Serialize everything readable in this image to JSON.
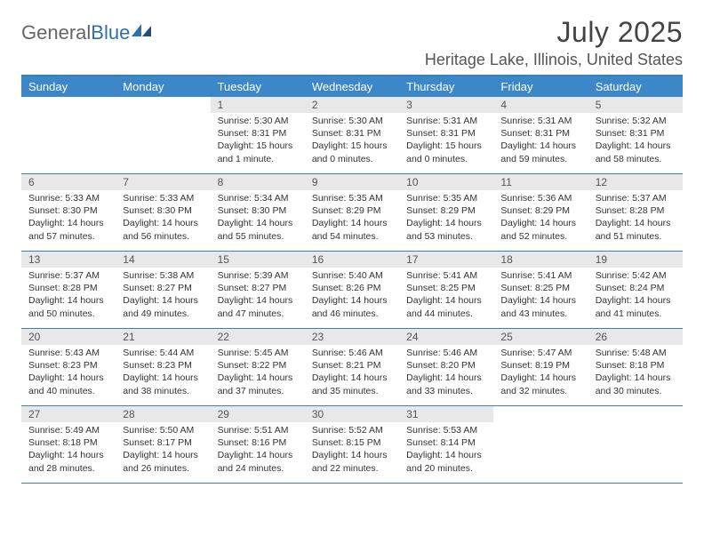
{
  "logo": {
    "text_general": "General",
    "text_blue": "Blue"
  },
  "title": {
    "month": "July 2025",
    "location": "Heritage Lake, Illinois, United States"
  },
  "colors": {
    "header_bar": "#3b87c8",
    "border": "#3b7fb8",
    "daynum_bg": "#e8e8e8",
    "text": "#333333",
    "logo_blue": "#2f6fae"
  },
  "day_names": [
    "Sunday",
    "Monday",
    "Tuesday",
    "Wednesday",
    "Thursday",
    "Friday",
    "Saturday"
  ],
  "weeks": [
    [
      {
        "day": "",
        "lines": []
      },
      {
        "day": "",
        "lines": []
      },
      {
        "day": "1",
        "lines": [
          "Sunrise: 5:30 AM",
          "Sunset: 8:31 PM",
          "Daylight: 15 hours and 1 minute."
        ]
      },
      {
        "day": "2",
        "lines": [
          "Sunrise: 5:30 AM",
          "Sunset: 8:31 PM",
          "Daylight: 15 hours and 0 minutes."
        ]
      },
      {
        "day": "3",
        "lines": [
          "Sunrise: 5:31 AM",
          "Sunset: 8:31 PM",
          "Daylight: 15 hours and 0 minutes."
        ]
      },
      {
        "day": "4",
        "lines": [
          "Sunrise: 5:31 AM",
          "Sunset: 8:31 PM",
          "Daylight: 14 hours and 59 minutes."
        ]
      },
      {
        "day": "5",
        "lines": [
          "Sunrise: 5:32 AM",
          "Sunset: 8:31 PM",
          "Daylight: 14 hours and 58 minutes."
        ]
      }
    ],
    [
      {
        "day": "6",
        "lines": [
          "Sunrise: 5:33 AM",
          "Sunset: 8:30 PM",
          "Daylight: 14 hours and 57 minutes."
        ]
      },
      {
        "day": "7",
        "lines": [
          "Sunrise: 5:33 AM",
          "Sunset: 8:30 PM",
          "Daylight: 14 hours and 56 minutes."
        ]
      },
      {
        "day": "8",
        "lines": [
          "Sunrise: 5:34 AM",
          "Sunset: 8:30 PM",
          "Daylight: 14 hours and 55 minutes."
        ]
      },
      {
        "day": "9",
        "lines": [
          "Sunrise: 5:35 AM",
          "Sunset: 8:29 PM",
          "Daylight: 14 hours and 54 minutes."
        ]
      },
      {
        "day": "10",
        "lines": [
          "Sunrise: 5:35 AM",
          "Sunset: 8:29 PM",
          "Daylight: 14 hours and 53 minutes."
        ]
      },
      {
        "day": "11",
        "lines": [
          "Sunrise: 5:36 AM",
          "Sunset: 8:29 PM",
          "Daylight: 14 hours and 52 minutes."
        ]
      },
      {
        "day": "12",
        "lines": [
          "Sunrise: 5:37 AM",
          "Sunset: 8:28 PM",
          "Daylight: 14 hours and 51 minutes."
        ]
      }
    ],
    [
      {
        "day": "13",
        "lines": [
          "Sunrise: 5:37 AM",
          "Sunset: 8:28 PM",
          "Daylight: 14 hours and 50 minutes."
        ]
      },
      {
        "day": "14",
        "lines": [
          "Sunrise: 5:38 AM",
          "Sunset: 8:27 PM",
          "Daylight: 14 hours and 49 minutes."
        ]
      },
      {
        "day": "15",
        "lines": [
          "Sunrise: 5:39 AM",
          "Sunset: 8:27 PM",
          "Daylight: 14 hours and 47 minutes."
        ]
      },
      {
        "day": "16",
        "lines": [
          "Sunrise: 5:40 AM",
          "Sunset: 8:26 PM",
          "Daylight: 14 hours and 46 minutes."
        ]
      },
      {
        "day": "17",
        "lines": [
          "Sunrise: 5:41 AM",
          "Sunset: 8:25 PM",
          "Daylight: 14 hours and 44 minutes."
        ]
      },
      {
        "day": "18",
        "lines": [
          "Sunrise: 5:41 AM",
          "Sunset: 8:25 PM",
          "Daylight: 14 hours and 43 minutes."
        ]
      },
      {
        "day": "19",
        "lines": [
          "Sunrise: 5:42 AM",
          "Sunset: 8:24 PM",
          "Daylight: 14 hours and 41 minutes."
        ]
      }
    ],
    [
      {
        "day": "20",
        "lines": [
          "Sunrise: 5:43 AM",
          "Sunset: 8:23 PM",
          "Daylight: 14 hours and 40 minutes."
        ]
      },
      {
        "day": "21",
        "lines": [
          "Sunrise: 5:44 AM",
          "Sunset: 8:23 PM",
          "Daylight: 14 hours and 38 minutes."
        ]
      },
      {
        "day": "22",
        "lines": [
          "Sunrise: 5:45 AM",
          "Sunset: 8:22 PM",
          "Daylight: 14 hours and 37 minutes."
        ]
      },
      {
        "day": "23",
        "lines": [
          "Sunrise: 5:46 AM",
          "Sunset: 8:21 PM",
          "Daylight: 14 hours and 35 minutes."
        ]
      },
      {
        "day": "24",
        "lines": [
          "Sunrise: 5:46 AM",
          "Sunset: 8:20 PM",
          "Daylight: 14 hours and 33 minutes."
        ]
      },
      {
        "day": "25",
        "lines": [
          "Sunrise: 5:47 AM",
          "Sunset: 8:19 PM",
          "Daylight: 14 hours and 32 minutes."
        ]
      },
      {
        "day": "26",
        "lines": [
          "Sunrise: 5:48 AM",
          "Sunset: 8:18 PM",
          "Daylight: 14 hours and 30 minutes."
        ]
      }
    ],
    [
      {
        "day": "27",
        "lines": [
          "Sunrise: 5:49 AM",
          "Sunset: 8:18 PM",
          "Daylight: 14 hours and 28 minutes."
        ]
      },
      {
        "day": "28",
        "lines": [
          "Sunrise: 5:50 AM",
          "Sunset: 8:17 PM",
          "Daylight: 14 hours and 26 minutes."
        ]
      },
      {
        "day": "29",
        "lines": [
          "Sunrise: 5:51 AM",
          "Sunset: 8:16 PM",
          "Daylight: 14 hours and 24 minutes."
        ]
      },
      {
        "day": "30",
        "lines": [
          "Sunrise: 5:52 AM",
          "Sunset: 8:15 PM",
          "Daylight: 14 hours and 22 minutes."
        ]
      },
      {
        "day": "31",
        "lines": [
          "Sunrise: 5:53 AM",
          "Sunset: 8:14 PM",
          "Daylight: 14 hours and 20 minutes."
        ]
      },
      {
        "day": "",
        "lines": []
      },
      {
        "day": "",
        "lines": []
      }
    ]
  ]
}
